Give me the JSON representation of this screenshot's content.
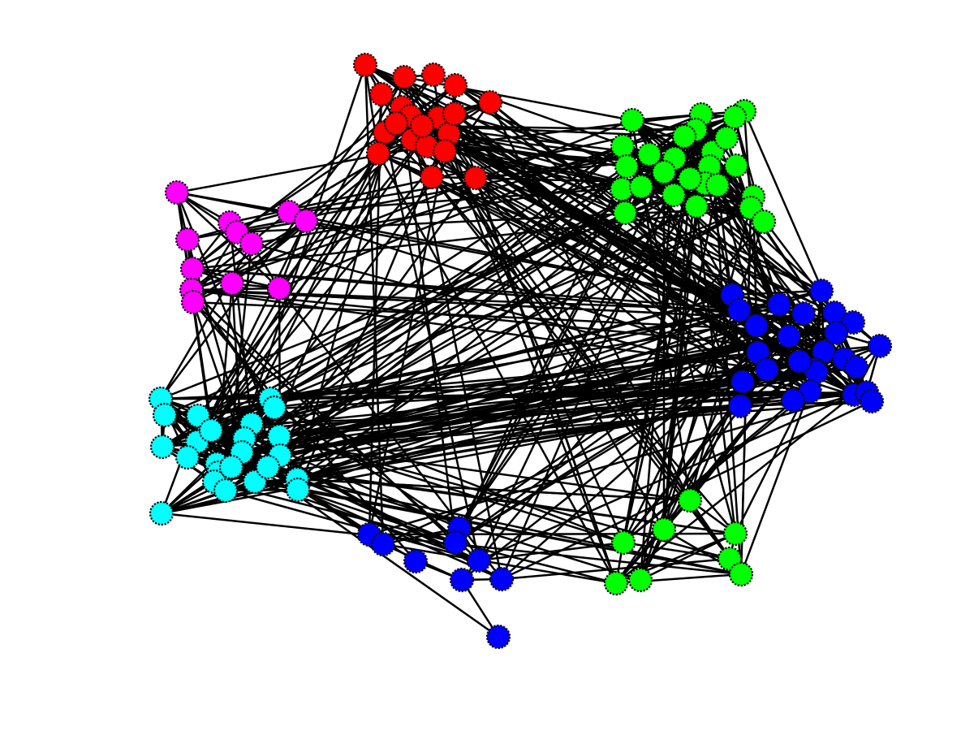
{
  "graph": {
    "type": "network",
    "colors": {
      "red": "#ff0000",
      "green": "#00ff00",
      "blue": "#0000ff",
      "magenta": "#ff00ff",
      "cyan": "#00ffff",
      "edge": "#000000",
      "node_outline": "#111111",
      "background": "#ffffff"
    },
    "communities": [
      {
        "id": "red",
        "color": "red",
        "size": 20
      },
      {
        "id": "green",
        "color": "green",
        "size": 26
      },
      {
        "id": "blue-east",
        "color": "blue",
        "size": 26
      },
      {
        "id": "magenta",
        "color": "magenta",
        "size": 12
      },
      {
        "id": "cyan",
        "color": "cyan",
        "size": 24
      },
      {
        "id": "blue-south",
        "color": "blue",
        "size": 9
      },
      {
        "id": "green-south",
        "color": "green",
        "size": 8
      }
    ]
  }
}
